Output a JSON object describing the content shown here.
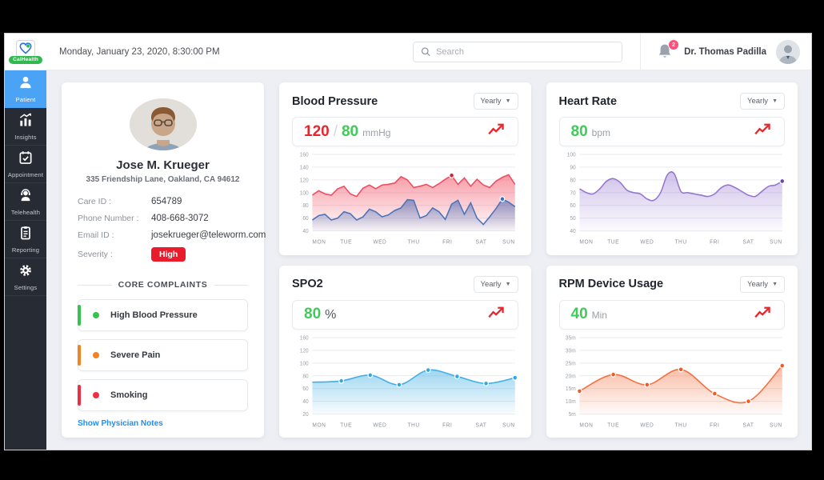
{
  "window": {
    "date": "Monday, January 23, 2020, 8:30:00 PM"
  },
  "brand": {
    "name": "CalHealth"
  },
  "topbar": {
    "search_placeholder": "Search",
    "notifications_count": "2",
    "user_name": "Dr. Thomas Padilla"
  },
  "sidebar": {
    "items": [
      {
        "label": "Patient",
        "active": true
      },
      {
        "label": "Insights",
        "active": false
      },
      {
        "label": "Appointment",
        "active": false
      },
      {
        "label": "Telehealth",
        "active": false
      },
      {
        "label": "Reporting",
        "active": false
      },
      {
        "label": "Settings",
        "active": false
      }
    ]
  },
  "patient": {
    "name": "Jose M. Krueger",
    "address": "335 Friendship Lane, Oakland, CA 94612",
    "care_id_label": "Care ID :",
    "care_id": "654789",
    "phone_label": "Phone Number :",
    "phone": "408-668-3072",
    "email_label": "Email ID :",
    "email": "josekrueger@teleworm.com",
    "severity_label": "Severity :",
    "severity": "High",
    "severity_color": "#ea1c2c"
  },
  "complaints": {
    "title": "CORE COMPLAINTS",
    "items": [
      {
        "label": "High Blood Pressure",
        "color": "#35c24e"
      },
      {
        "label": "Severe Pain",
        "color": "#f58220"
      },
      {
        "label": "Smoking",
        "color": "#ef2d45"
      }
    ],
    "link": "Show Physician Notes"
  },
  "chart_data": [
    {
      "type": "area",
      "title": "Blood Pressure",
      "period": "Yearly",
      "reading_parts": [
        {
          "text": "120",
          "kind": "num",
          "color": "#e8262d"
        },
        {
          "text": "/",
          "kind": "sep",
          "color": "#d3d6db"
        },
        {
          "text": "80",
          "kind": "num",
          "color": "#3fca5a"
        },
        {
          "text": "mmHg",
          "kind": "unit",
          "color": "#9aa0a6"
        }
      ],
      "ticks": [
        160,
        140,
        120,
        100,
        80,
        60,
        40
      ],
      "tick_suffix": "",
      "x_labels": [
        "MON",
        "TUE",
        "WED",
        "THU",
        "FRI",
        "SAT",
        "SUN"
      ],
      "series": [
        {
          "name": "systolic",
          "smooth": false,
          "color": "#f24a5e",
          "fill_top": "rgba(242,74,94,0.55)",
          "fill_bottom": "rgba(242,74,94,0.02)",
          "values": [
            96,
            103,
            98,
            96,
            106,
            110,
            98,
            94,
            107,
            112,
            106,
            112,
            113,
            115,
            125,
            120,
            108,
            110,
            113,
            108,
            114,
            121,
            127,
            113,
            123,
            110,
            121,
            112,
            108,
            118,
            124,
            128,
            113
          ],
          "markers": [
            22
          ],
          "marker_color": "#d91e2e"
        },
        {
          "name": "diastolic",
          "smooth": false,
          "color": "#4a72b8",
          "fill_top": "rgba(82,114,184,0.65)",
          "fill_bottom": "rgba(82,114,184,0.04)",
          "values": [
            57,
            64,
            66,
            57,
            60,
            70,
            67,
            57,
            62,
            74,
            70,
            62,
            65,
            72,
            76,
            89,
            88,
            60,
            64,
            76,
            70,
            58,
            82,
            88,
            66,
            84,
            60,
            50,
            62,
            75,
            90,
            85,
            78
          ],
          "markers": [
            30
          ],
          "marker_color": "#2f6fd0"
        }
      ]
    },
    {
      "type": "area",
      "title": "Heart Rate",
      "period": "Yearly",
      "reading_parts": [
        {
          "text": "80",
          "kind": "num",
          "color": "#3fca5a"
        },
        {
          "text": "bpm",
          "kind": "unit",
          "color": "#9aa0a6"
        }
      ],
      "ticks": [
        100,
        90,
        80,
        70,
        60,
        50,
        40
      ],
      "tick_suffix": "",
      "x_labels": [
        "MON",
        "TUE",
        "WED",
        "THU",
        "FRI",
        "SAT",
        "SUN"
      ],
      "series": [
        {
          "name": "heart-rate",
          "smooth": true,
          "color": "#9575cd",
          "fill_top": "rgba(149,117,205,0.45)",
          "fill_bottom": "rgba(149,117,205,0.03)",
          "values": [
            73,
            70,
            69,
            73,
            79,
            81,
            78,
            72,
            70,
            69,
            65,
            64,
            70,
            84,
            85,
            71,
            70,
            69,
            68,
            67,
            69,
            74,
            76,
            74,
            71,
            68,
            67,
            71,
            75,
            76,
            79
          ],
          "markers": [
            30
          ],
          "marker_color": "#6a43b5"
        }
      ]
    },
    {
      "type": "area",
      "title": "SPO2",
      "period": "Yearly",
      "reading_parts": [
        {
          "text": "80",
          "kind": "num",
          "color": "#3fca5a"
        },
        {
          "text": "%",
          "kind": "unitlg",
          "color": "#50555b"
        }
      ],
      "ticks": [
        160,
        120,
        100,
        80,
        60,
        40,
        20
      ],
      "tick_suffix": "",
      "x_labels": [
        "MON",
        "TUE",
        "WED",
        "THU",
        "FRI",
        "SAT",
        "SUN"
      ],
      "series": [
        {
          "name": "spo2",
          "smooth": true,
          "color": "#41aee5",
          "fill_top": "rgba(80,180,230,0.55)",
          "fill_bottom": "rgba(80,180,230,0.04)",
          "values": [
            70,
            72,
            81,
            66,
            89,
            79,
            68,
            77
          ],
          "markers": [
            1,
            2,
            3,
            4,
            5,
            6,
            7
          ],
          "marker_color": "#2da9e8"
        }
      ]
    },
    {
      "type": "area",
      "title": "RPM Device Usage",
      "period": "Yearly",
      "reading_parts": [
        {
          "text": "40",
          "kind": "num",
          "color": "#3fca5a"
        },
        {
          "text": "Min",
          "kind": "unit",
          "color": "#9aa0a6"
        }
      ],
      "ticks": [
        35,
        30,
        25,
        20,
        15,
        10,
        5
      ],
      "tick_suffix": "m",
      "x_labels": [
        "MON",
        "TUE",
        "WED",
        "THU",
        "FRI",
        "SAT",
        "SUN"
      ],
      "series": [
        {
          "name": "rpm-usage",
          "smooth": true,
          "color": "#f4703e",
          "fill_top": "rgba(244,112,62,0.48)",
          "fill_bottom": "rgba(244,112,62,0.03)",
          "values": [
            14,
            20.5,
            16.5,
            22.5,
            13,
            10,
            24
          ],
          "markers": [
            0,
            1,
            2,
            3,
            4,
            5,
            6
          ],
          "marker_color": "#f05a2a"
        }
      ]
    }
  ]
}
